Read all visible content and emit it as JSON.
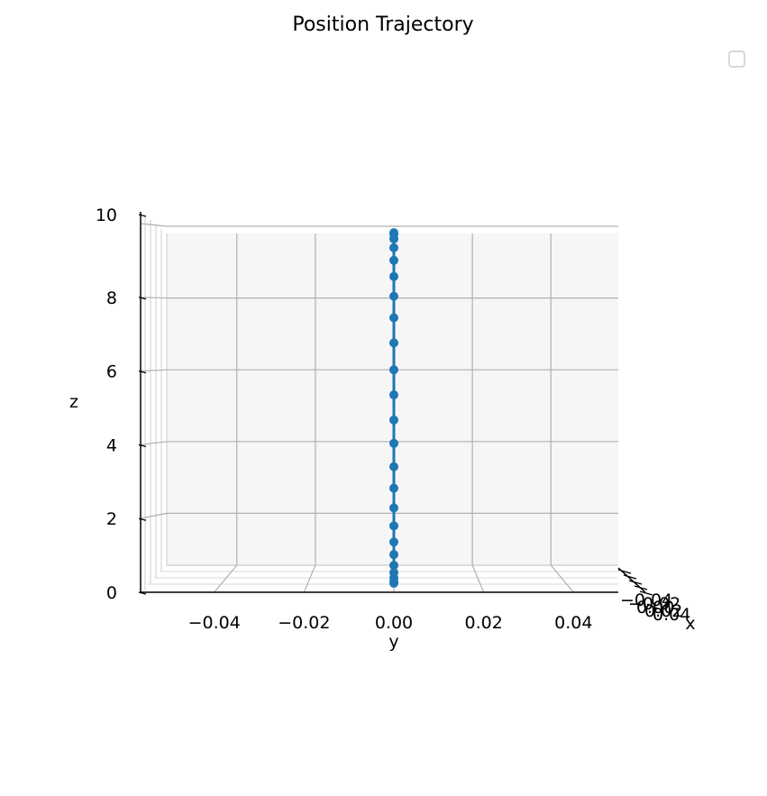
{
  "chart_data": {
    "type": "line",
    "projection": "3d",
    "title": "Position Trajectory",
    "xlabel": "x",
    "ylabel": "y",
    "zlabel": "z",
    "grid": true,
    "legend": {
      "placement": "top-right",
      "entries": []
    },
    "line_color": "#1f77b4",
    "markers": true,
    "y_ticks": [
      "−0.04",
      "−0.02",
      "0.00",
      "0.02",
      "0.04"
    ],
    "y_tick_values": [
      -0.04,
      -0.02,
      0.0,
      0.02,
      0.04
    ],
    "z_ticks": [
      "0",
      "2",
      "4",
      "6",
      "8",
      "10"
    ],
    "z_tick_values": [
      0,
      2,
      4,
      6,
      8,
      10
    ],
    "x_ticks": [
      "−0.04",
      "−0.02",
      "0.00",
      "0.02",
      "0.04"
    ],
    "ylim": [
      -0.05,
      0.05
    ],
    "zlim": [
      0,
      10
    ],
    "series": [
      {
        "x": [
          0,
          0,
          0,
          0,
          0,
          0,
          0,
          0,
          0,
          0,
          0,
          0,
          0,
          0,
          0,
          0,
          0,
          0,
          0,
          0,
          0,
          0,
          0,
          0
        ],
        "y": [
          0,
          0,
          0,
          0,
          0,
          0,
          0,
          0,
          0,
          0,
          0,
          0,
          0,
          0,
          0,
          0,
          0,
          0,
          0,
          0,
          0,
          0,
          0,
          0
        ],
        "z": [
          0.05,
          0.1,
          0.2,
          0.35,
          0.55,
          0.85,
          1.2,
          1.65,
          2.15,
          2.7,
          3.3,
          3.95,
          4.6,
          5.3,
          6.0,
          6.75,
          7.45,
          8.05,
          8.6,
          9.05,
          9.4,
          9.65,
          9.78,
          9.82
        ]
      }
    ]
  }
}
